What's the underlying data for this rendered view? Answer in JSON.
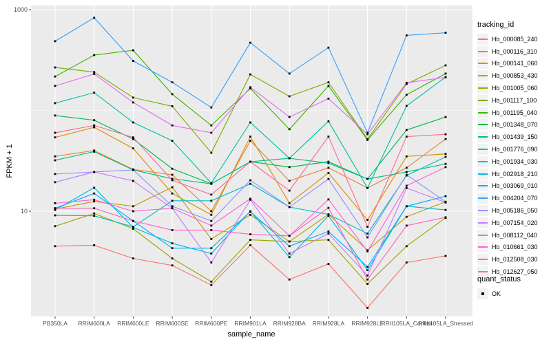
{
  "figure": {
    "legend": {
      "title": "tracking_id"
    },
    "legend2": {
      "title": "quant_status",
      "items": [
        {
          "label": "OK",
          "symbol": "black-square-point"
        }
      ]
    },
    "colors": {
      "panel_background": "#EBEBEB",
      "gridline": "#FFFFFF",
      "axis_text": "#4D4D4D",
      "tick_mark": "#333333",
      "point": "#000000",
      "legend_key_background": "#F2F2F2"
    }
  },
  "chart_data": {
    "type": "line",
    "title": "",
    "xlabel": "sample_name",
    "ylabel": "FPKM + 1",
    "y_scale": "log10",
    "ylim": [
      0.9,
      1100
    ],
    "y_tick_values": [
      1000,
      10
    ],
    "y_tick_labels": [
      "1000",
      "10"
    ],
    "y_minor_gridlines": [
      100,
      1
    ],
    "grid": true,
    "legend_position": "right",
    "point_marker": {
      "shape": "square",
      "color": "#000000",
      "status": "OK"
    },
    "categories": [
      "PB350LA",
      "RRIM600LA",
      "RRIM600LE",
      "RRIM600SE",
      "RRIM600PE",
      "RRIM901LA",
      "RRIM928BA",
      "RRIM928LA",
      "RRIM928LE",
      "RRII105LA_Control",
      "RRII105LA_Stressed"
    ],
    "series": [
      {
        "name": "Hb_000085_240",
        "color": "#F8766D",
        "values": [
          4.5,
          4.6,
          3.4,
          2.9,
          1.85,
          4.6,
          2.1,
          3.0,
          1.1,
          3.1,
          3.6
        ]
      },
      {
        "name": "Hb_000116_310",
        "color": "#EA8331",
        "values": [
          35,
          40,
          26,
          23,
          10,
          50,
          20,
          27,
          17,
          27,
          52
        ]
      },
      {
        "name": "Hb_000141_060",
        "color": "#D89000",
        "values": [
          54,
          68,
          42,
          15,
          9.2,
          55,
          12,
          24,
          8.2,
          35,
          37
        ]
      },
      {
        "name": "Hb_000853_430",
        "color": "#C09B00",
        "values": [
          10.5,
          12.5,
          11.2,
          17.3,
          5.3,
          9.2,
          5.0,
          9.3,
          4.1,
          8.8,
          12.4
        ]
      },
      {
        "name": "Hb_001005_060",
        "color": "#A3A500",
        "values": [
          7.1,
          9.5,
          6.7,
          3.4,
          2.0,
          5.2,
          5.0,
          5.2,
          1.9,
          4.5,
          8.6
        ]
      },
      {
        "name": "Hb_001117_100",
        "color": "#7CAE00",
        "values": [
          267,
          240,
          134,
          110,
          38,
          228,
          138,
          190,
          52,
          183,
          280
        ]
      },
      {
        "name": "Hb_001195_040",
        "color": "#39B600",
        "values": [
          217,
          354,
          395,
          145,
          71,
          165,
          65,
          175,
          51,
          143,
          232
        ]
      },
      {
        "name": "Hb_001348_070",
        "color": "#00BB4E",
        "values": [
          89,
          80,
          52,
          26.4,
          18.7,
          31,
          27.4,
          31,
          20.9,
          64,
          86
        ]
      },
      {
        "name": "Hb_001439_150",
        "color": "#00BF7D",
        "values": [
          32,
          39,
          25.7,
          21,
          18.7,
          31,
          33.5,
          30,
          20.9,
          24.5,
          29.5
        ]
      },
      {
        "name": "Hb_001776_090",
        "color": "#00C1A3",
        "values": [
          118,
          150,
          76,
          50,
          19,
          76,
          33.5,
          78,
          17,
          111,
          214
        ]
      },
      {
        "name": "Hb_001934_030",
        "color": "#00BFC4",
        "values": [
          9.1,
          9.0,
          7.0,
          12.7,
          12.7,
          18.7,
          11,
          9.3,
          6.0,
          22.6,
          34.6
        ]
      },
      {
        "name": "Hb_002918_210",
        "color": "#00BAE0",
        "values": [
          10.3,
          17.1,
          6.9,
          4.8,
          3.8,
          10.0,
          3.5,
          9.0,
          2.6,
          11.2,
          10.3
        ]
      },
      {
        "name": "Hb_003069_010",
        "color": "#00B0F6",
        "values": [
          10.7,
          15.0,
          8.0,
          4.3,
          4.3,
          9.9,
          4.5,
          6.3,
          2.8,
          11.2,
          14.1
        ]
      },
      {
        "name": "Hb_004204_070",
        "color": "#35A2FF",
        "values": [
          486,
          830,
          310,
          190,
          107,
          470,
          232,
          420,
          60,
          555,
          590
        ]
      },
      {
        "name": "Hb_005186_050",
        "color": "#9590FF",
        "values": [
          19.4,
          24.5,
          25.7,
          11.2,
          8.0,
          20.3,
          11.0,
          20.9,
          5.5,
          23,
          12.4
        ]
      },
      {
        "name": "Hb_007154_020",
        "color": "#C77CFF",
        "values": [
          23.4,
          24.5,
          20,
          10.7,
          3.1,
          13,
          3.8,
          6.0,
          2.3,
          17,
          12.2
        ]
      },
      {
        "name": "Hb_008112_040",
        "color": "#E76BF3",
        "values": [
          175,
          230,
          120,
          71,
          60,
          170,
          86,
          131,
          58,
          188,
          213
        ]
      },
      {
        "name": "Hb_010661_030",
        "color": "#FA62DB",
        "values": [
          12,
          13,
          10,
          10.7,
          7.2,
          13.3,
          5.7,
          13.1,
          4.0,
          17.9,
          27.4
        ]
      },
      {
        "name": "Hb_012508_030",
        "color": "#FF62BC",
        "values": [
          10.7,
          10.7,
          8.0,
          6.5,
          6.5,
          5.9,
          5.7,
          10.8,
          2.1,
          7.2,
          8.7
        ]
      },
      {
        "name": "Hb_012627_050",
        "color": "#FF6A98",
        "values": [
          60,
          71,
          54,
          20.3,
          14.6,
          31,
          16,
          55,
          7.0,
          55,
          58
        ]
      }
    ]
  }
}
